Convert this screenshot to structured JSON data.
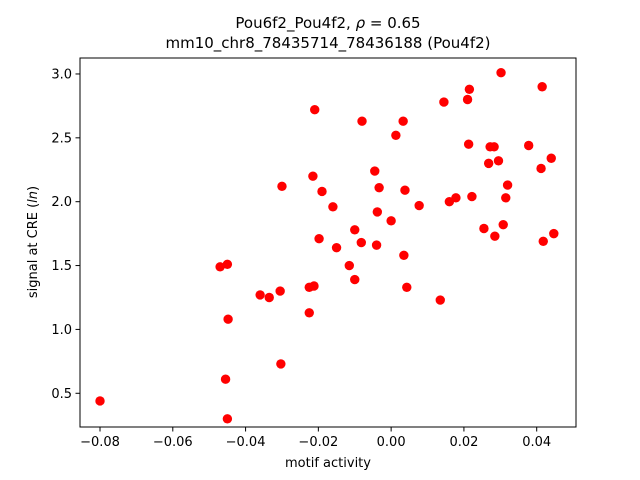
{
  "chart_data": {
    "type": "scatter",
    "title_line1_prefix": "Pou6f2_Pou4f2, ",
    "title_line1_rho": "ρ",
    "title_line1_suffix": " = 0.65",
    "title_line2": "mm10_chr8_78435714_78436188 (Pou4f2)",
    "xlabel": "motif activity",
    "ylabel_prefix": "signal at CRE (",
    "ylabel_italic": "ln",
    "ylabel_suffix": ")",
    "xlim": [
      -0.0855,
      0.0508
    ],
    "ylim": [
      0.236,
      3.125
    ],
    "xticks": [
      -0.08,
      -0.06,
      -0.04,
      -0.02,
      0.0,
      0.02,
      0.04
    ],
    "xtick_labels": [
      "−0.08",
      "−0.06",
      "−0.04",
      "−0.02",
      "0.00",
      "0.02",
      "0.04"
    ],
    "yticks": [
      0.5,
      1.0,
      1.5,
      2.0,
      2.5,
      3.0
    ],
    "ytick_labels": [
      "0.5",
      "1.0",
      "1.5",
      "2.0",
      "2.5",
      "3.0"
    ],
    "grid": false,
    "marker_color": "#ff0000",
    "points": [
      {
        "x": -0.08,
        "y": 0.44
      },
      {
        "x": -0.047,
        "y": 1.49
      },
      {
        "x": -0.045,
        "y": 1.51
      },
      {
        "x": -0.0455,
        "y": 0.61
      },
      {
        "x": -0.0448,
        "y": 1.08
      },
      {
        "x": -0.045,
        "y": 0.3
      },
      {
        "x": -0.036,
        "y": 1.27
      },
      {
        "x": -0.0335,
        "y": 1.25
      },
      {
        "x": -0.0305,
        "y": 1.3
      },
      {
        "x": -0.03,
        "y": 2.12
      },
      {
        "x": -0.0303,
        "y": 0.73
      },
      {
        "x": -0.0225,
        "y": 1.13
      },
      {
        "x": -0.0225,
        "y": 1.33
      },
      {
        "x": -0.0212,
        "y": 1.34
      },
      {
        "x": -0.0215,
        "y": 2.2
      },
      {
        "x": -0.021,
        "y": 2.72
      },
      {
        "x": -0.0198,
        "y": 1.71
      },
      {
        "x": -0.019,
        "y": 2.08
      },
      {
        "x": -0.016,
        "y": 1.96
      },
      {
        "x": -0.015,
        "y": 1.64
      },
      {
        "x": -0.0115,
        "y": 1.5
      },
      {
        "x": -0.01,
        "y": 1.78
      },
      {
        "x": -0.01,
        "y": 1.39
      },
      {
        "x": -0.0082,
        "y": 1.68
      },
      {
        "x": -0.008,
        "y": 2.63
      },
      {
        "x": -0.0045,
        "y": 2.24
      },
      {
        "x": -0.004,
        "y": 1.66
      },
      {
        "x": -0.0038,
        "y": 1.92
      },
      {
        "x": -0.0033,
        "y": 2.11
      },
      {
        "x": 0.0,
        "y": 1.85
      },
      {
        "x": 0.0013,
        "y": 2.52
      },
      {
        "x": 0.0033,
        "y": 2.63
      },
      {
        "x": 0.0035,
        "y": 1.58
      },
      {
        "x": 0.0038,
        "y": 2.09
      },
      {
        "x": 0.0043,
        "y": 1.33
      },
      {
        "x": 0.0077,
        "y": 1.97
      },
      {
        "x": 0.0135,
        "y": 1.23
      },
      {
        "x": 0.0145,
        "y": 2.78
      },
      {
        "x": 0.016,
        "y": 2.0
      },
      {
        "x": 0.0178,
        "y": 2.03
      },
      {
        "x": 0.021,
        "y": 2.8
      },
      {
        "x": 0.0213,
        "y": 2.45
      },
      {
        "x": 0.0215,
        "y": 2.88
      },
      {
        "x": 0.0222,
        "y": 2.04
      },
      {
        "x": 0.0255,
        "y": 1.79
      },
      {
        "x": 0.0268,
        "y": 2.3
      },
      {
        "x": 0.0272,
        "y": 2.43
      },
      {
        "x": 0.0283,
        "y": 2.43
      },
      {
        "x": 0.0285,
        "y": 1.73
      },
      {
        "x": 0.0295,
        "y": 2.32
      },
      {
        "x": 0.0302,
        "y": 3.01
      },
      {
        "x": 0.0308,
        "y": 1.82
      },
      {
        "x": 0.0315,
        "y": 2.03
      },
      {
        "x": 0.032,
        "y": 2.13
      },
      {
        "x": 0.0378,
        "y": 2.44
      },
      {
        "x": 0.0412,
        "y": 2.26
      },
      {
        "x": 0.0415,
        "y": 2.9
      },
      {
        "x": 0.0418,
        "y": 1.69
      },
      {
        "x": 0.044,
        "y": 2.34
      },
      {
        "x": 0.0447,
        "y": 1.75
      }
    ]
  }
}
